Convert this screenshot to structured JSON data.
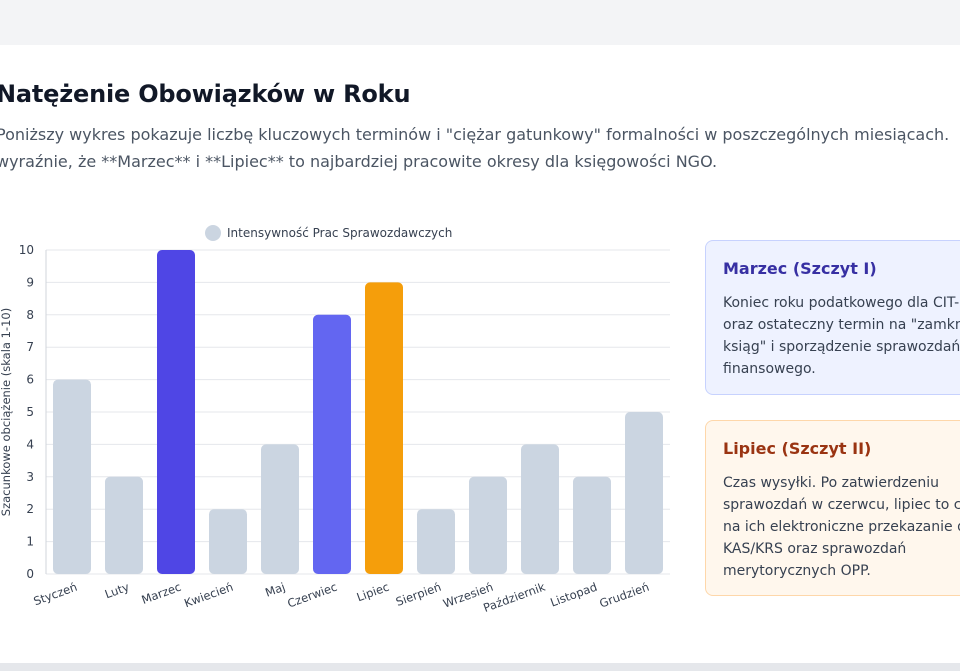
{
  "header": {
    "title": "Natężenie Obowiązków w Roku",
    "description_lines": [
      "Poniższy wykres pokazuje liczbę kluczowych terminów i \"ciężar gatunkowy\" formalności w poszczególnych miesiącach.",
      "wyraźnie, że **Marzec** i **Lipiec** to najbardziej pracowite okresy dla księgowości NGO."
    ]
  },
  "chart_data": {
    "type": "bar",
    "legend": "Intensywność Prac Sprawozdawczych",
    "legend_position": "top-center",
    "ylabel": "Szacunkowe obciążenie (skala 1-10)",
    "xlabel": "",
    "ylim": [
      0,
      10
    ],
    "yticks": [
      0,
      1,
      2,
      3,
      4,
      5,
      6,
      7,
      8,
      9,
      10
    ],
    "grid": true,
    "categories": [
      "Styczeń",
      "Luty",
      "Marzec",
      "Kwiecień",
      "Maj",
      "Czerwiec",
      "Lipiec",
      "Sierpień",
      "Wrzesień",
      "Październik",
      "Listopad",
      "Grudzień"
    ],
    "values": [
      6,
      3,
      10,
      2,
      4,
      8,
      9,
      2,
      3,
      4,
      3,
      5
    ],
    "colors": [
      "#cbd5e1",
      "#cbd5e1",
      "#4f46e5",
      "#cbd5e1",
      "#cbd5e1",
      "#6366f1",
      "#f59e0b",
      "#cbd5e1",
      "#cbd5e1",
      "#cbd5e1",
      "#cbd5e1",
      "#cbd5e1"
    ],
    "legend_swatch_color": "#cbd5e1"
  },
  "cards": {
    "march": {
      "title": "Marzec (Szczyt I)",
      "lines": [
        "Koniec roku podatkowego dla CIT-",
        "oraz ostateczny termin na \"zamkn",
        "ksiąg\" i sporządzenie sprawozdań",
        "finansowego."
      ]
    },
    "july": {
      "title": "Lipiec (Szczyt II)",
      "lines": [
        "Czas wysyłki. Po zatwierdzeniu",
        "sprawozdań w czerwcu, lipiec to c",
        "na ich elektroniczne przekazanie d",
        "KAS/KRS oraz sprawozdań",
        "merytorycznych OPP."
      ]
    }
  }
}
